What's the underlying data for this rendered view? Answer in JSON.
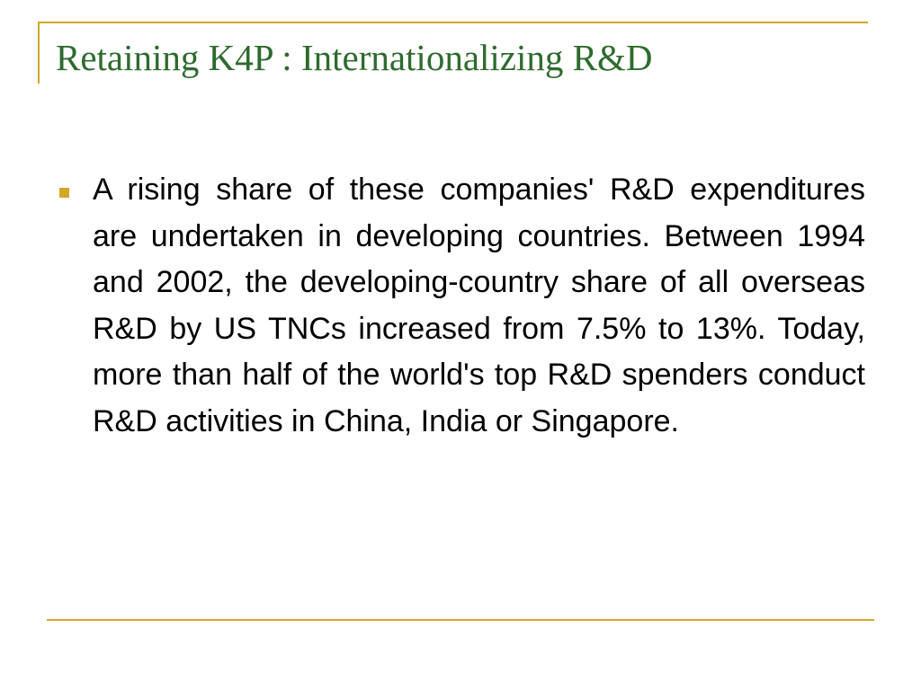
{
  "title": "Retaining K4P : Internationalizing R&D",
  "bullets": [
    "A rising share of these companies' R&D expenditures are undertaken in developing countries. Between 1994 and 2002, the developing-country share of all overseas R&D by US TNCs increased from 7.5% to 13%. Today, more than half of the world's top R&D spenders conduct R&D activities in China, India or Singapore."
  ]
}
